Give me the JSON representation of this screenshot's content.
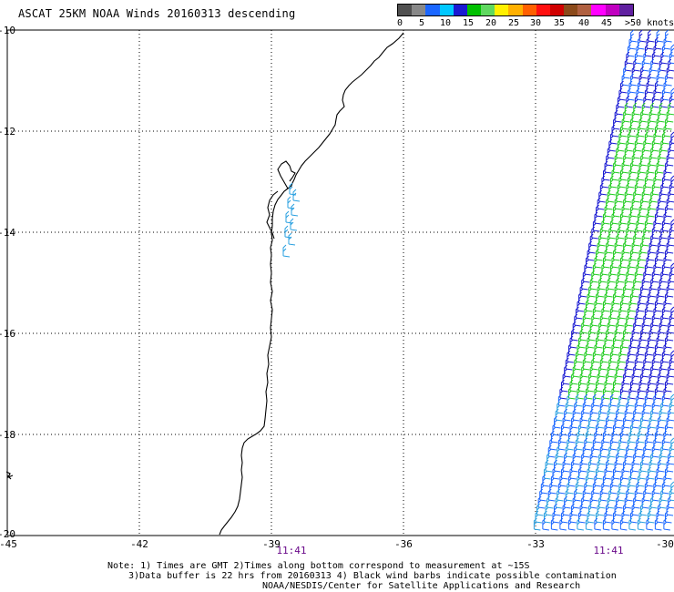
{
  "title": "ASCAT 25KM NOAA Winds 20160313 descending",
  "scale": {
    "labels": [
      "0",
      "5",
      "10",
      "15",
      "20",
      "25",
      "30",
      "35",
      "40",
      "45",
      ">50 knots"
    ],
    "colors": [
      "#505050",
      "#888888",
      "#1a66ff",
      "#00c8ff",
      "#1a1ad2",
      "#00c000",
      "#5fd85f",
      "#fff000",
      "#ffb000",
      "#ff6000",
      "#ff1010",
      "#d00000",
      "#8b4a1a",
      "#b06040",
      "#ff00ff",
      "#c000c0",
      "#6020a0"
    ]
  },
  "axes": {
    "lat_labels": [
      "-10",
      "-12",
      "-14",
      "-16",
      "-18",
      "-20"
    ],
    "lon_labels": [
      "-45",
      "-42",
      "-39",
      "-36",
      "-33",
      "-30"
    ]
  },
  "times": [
    "11:41",
    "11:41"
  ],
  "note": [
    "Note: 1) Times are GMT 2)Times along bottom correspond to measurement at ~15S",
    "3)Data buffer is 22 hrs from 20160313 4) Black wind barbs indicate possible contamination",
    "NOAA/NESDIS/Center for Satellite Applications and Research"
  ],
  "colors": {
    "coastline": "#000000",
    "barb_blue_dark": "#1a1ad2",
    "barb_blue": "#1a66ff",
    "barb_cyan": "#2aa0e0",
    "barb_green": "#22cc22",
    "grid": "#000000",
    "time_label": "#6a0a8a"
  }
}
